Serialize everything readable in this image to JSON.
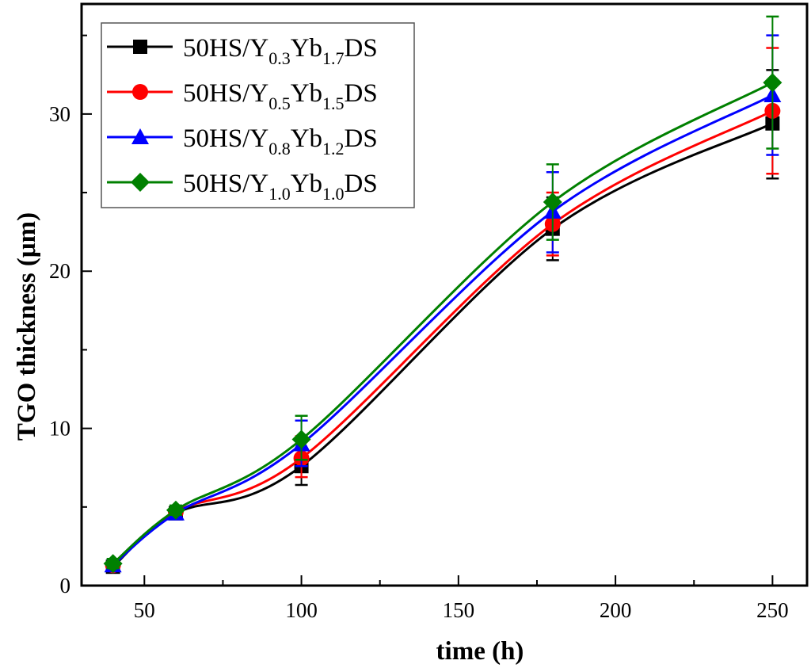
{
  "chart_data": {
    "type": "line",
    "title": "",
    "xlabel": "time (h)",
    "ylabel": "TGO thickness (μm)",
    "xlim": [
      30,
      261
    ],
    "ylim": [
      0,
      37
    ],
    "xticks": [
      50,
      100,
      150,
      200,
      250
    ],
    "yticks": [
      0,
      10,
      20,
      30
    ],
    "x_minor_step": 25,
    "y_minor_step": 5,
    "grid": false,
    "smooth": true,
    "legend_position": "top-left",
    "x": [
      40,
      60,
      100,
      180,
      250
    ],
    "series": [
      {
        "name": "50HS/Y0.3Yb1.7DS",
        "label_parts": [
          "50HS/Y",
          "0.3",
          "Yb",
          "1.7",
          "DS"
        ],
        "color": "#000000",
        "marker": "square",
        "values": [
          1.2,
          4.6,
          7.6,
          22.7,
          29.4
        ],
        "err_low": [
          1.0,
          4.4,
          6.4,
          20.7,
          25.9
        ],
        "err_high": [
          1.4,
          4.8,
          8.7,
          24.7,
          32.8
        ]
      },
      {
        "name": "50HS/Y0.5Yb1.5DS",
        "label_parts": [
          "50HS/Y",
          "0.5",
          "Yb",
          "1.5",
          "DS"
        ],
        "color": "#ff0000",
        "marker": "circle",
        "values": [
          1.3,
          4.7,
          8.1,
          23.0,
          30.2
        ],
        "err_low": [
          1.1,
          4.5,
          6.9,
          21.0,
          26.2
        ],
        "err_high": [
          1.5,
          4.9,
          9.5,
          25.0,
          34.2
        ]
      },
      {
        "name": "50HS/Y0.8Yb1.2DS",
        "label_parts": [
          "50HS/Y",
          "0.8",
          "Yb",
          "1.2",
          "DS"
        ],
        "color": "#0000ff",
        "marker": "triangle",
        "values": [
          1.3,
          4.6,
          9.0,
          23.8,
          31.2
        ],
        "err_low": [
          1.0,
          4.3,
          7.6,
          21.2,
          27.4
        ],
        "err_high": [
          1.6,
          4.9,
          10.5,
          26.3,
          35.0
        ]
      },
      {
        "name": "50HS/Y1.0Yb1.0DS",
        "label_parts": [
          "50HS/Y",
          "1.0",
          "Yb",
          "1.0",
          "DS"
        ],
        "color": "#008000",
        "marker": "diamond",
        "values": [
          1.4,
          4.8,
          9.3,
          24.4,
          32.0
        ],
        "err_low": [
          1.1,
          4.5,
          8.0,
          22.0,
          27.8
        ],
        "err_high": [
          1.7,
          5.1,
          10.8,
          26.8,
          36.2
        ]
      }
    ]
  }
}
